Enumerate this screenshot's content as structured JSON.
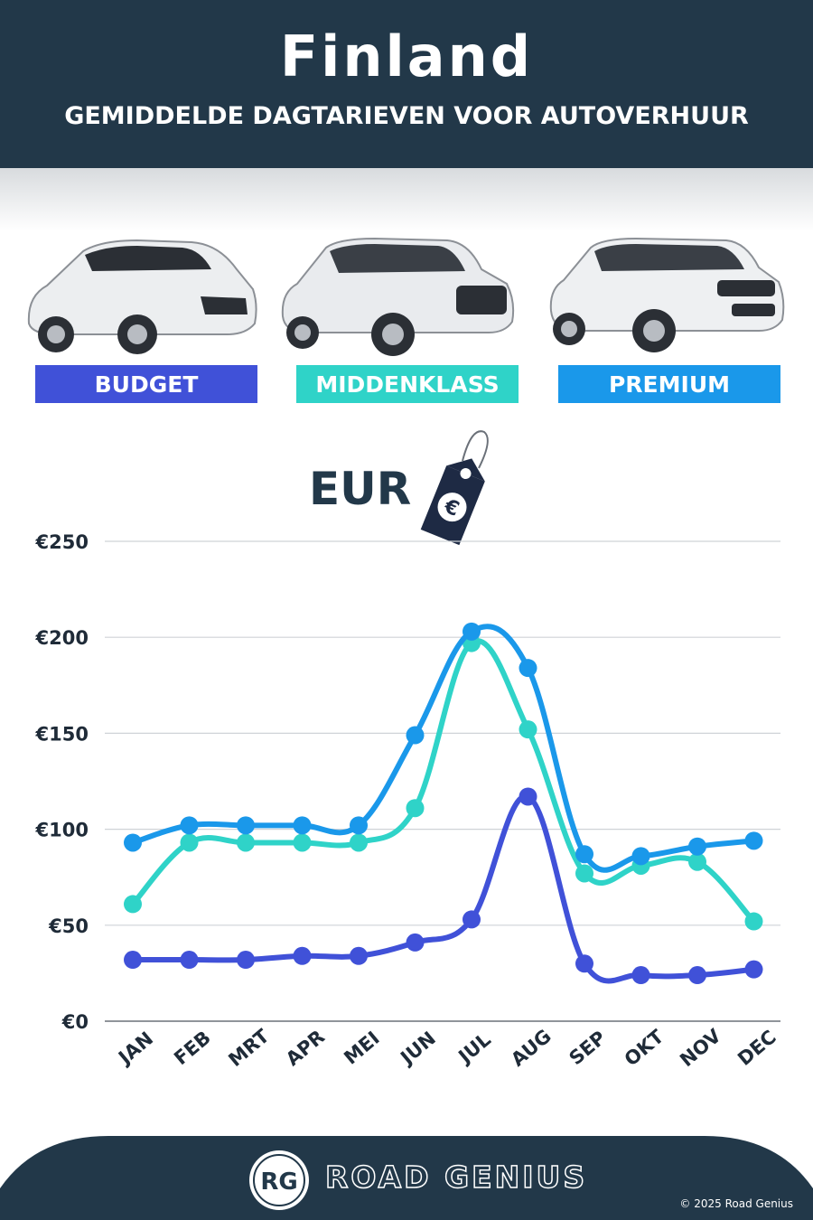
{
  "header": {
    "title": "Finland",
    "subtitle": "GEMIDDELDE DAGTARIEVEN VOOR AUTOVERHUUR"
  },
  "categories": [
    {
      "label": "BUDGET",
      "color": "#4051d8"
    },
    {
      "label": "MIDDENKLASS",
      "color": "#2fd3c8"
    },
    {
      "label": "PREMIUM",
      "color": "#1a98ea"
    }
  ],
  "currency_label": "EUR",
  "tag_icon": "euro-price-tag-icon",
  "chart_data": {
    "type": "line",
    "categories": [
      "JAN",
      "FEB",
      "MRT",
      "APR",
      "MEI",
      "JUN",
      "JUL",
      "AUG",
      "SEP",
      "OKT",
      "NOV",
      "DEC"
    ],
    "y_ticks": [
      "€0",
      "€50",
      "€100",
      "€150",
      "€200",
      "€250"
    ],
    "ylim": [
      0,
      250
    ],
    "grid": true,
    "series": [
      {
        "name": "BUDGET",
        "color": "#4051d8",
        "values": [
          32,
          32,
          32,
          34,
          34,
          41,
          53,
          117,
          30,
          24,
          24,
          27
        ]
      },
      {
        "name": "MIDDENKLASS",
        "color": "#2fd3c8",
        "values": [
          61,
          93,
          93,
          93,
          93,
          111,
          197,
          152,
          77,
          81,
          83,
          52
        ]
      },
      {
        "name": "PREMIUM",
        "color": "#1a98ea",
        "values": [
          93,
          102,
          102,
          102,
          102,
          149,
          203,
          184,
          87,
          86,
          91,
          94
        ]
      }
    ]
  },
  "footer": {
    "brand": "ROAD GENIUS",
    "logo_text": "RG",
    "copyright": "© 2025 Road Genius",
    "background": "#223849"
  }
}
